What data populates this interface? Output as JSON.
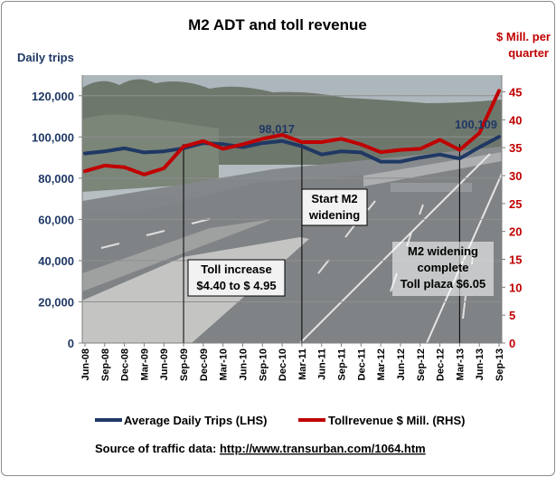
{
  "chart_data": {
    "type": "line",
    "title": "M2 ADT and toll revenue",
    "left_axis": {
      "label": "Daily trips",
      "ylim": [
        0,
        130000
      ],
      "ticks": [
        "0",
        "20,000",
        "40,000",
        "60,000",
        "80,000",
        "100,000",
        "120,000"
      ]
    },
    "right_axis": {
      "label_lines": [
        "$ Mill. per",
        "quarter"
      ],
      "ylim": [
        0,
        48
      ],
      "ticks": [
        "0",
        "5",
        "10",
        "15",
        "20",
        "25",
        "30",
        "35",
        "40",
        "45"
      ]
    },
    "x_labels": [
      "Jun-08",
      "Sep-08",
      "Dec-08",
      "Mar-09",
      "Jun-09",
      "Sep-09",
      "Dec-09",
      "Mar-10",
      "Jun-10",
      "Sep-10",
      "Dec-10",
      "Mar-11",
      "Jun-11",
      "Sep-11",
      "Dec-11",
      "Mar-12",
      "Jun-12",
      "Sep-12",
      "Dec-12",
      "Mar-13",
      "Jun-13",
      "Sep-13"
    ],
    "series": [
      {
        "name": "Average Daily Trips (LHS)",
        "axis": "left",
        "color": "#1f3864",
        "values": [
          92000,
          93000,
          94500,
          92500,
          93000,
          94500,
          97000,
          96500,
          95000,
          97000,
          98017,
          95500,
          91500,
          93000,
          92500,
          88000,
          88000,
          90000,
          91500,
          89500,
          95000,
          100109
        ]
      },
      {
        "name": "Tollrevenue $ Mill. (RHS)",
        "axis": "right",
        "color": "#c00000",
        "values": [
          30.8,
          31.8,
          31.5,
          30.2,
          31.3,
          35.2,
          36.2,
          34.8,
          35.6,
          36.6,
          37.3,
          36.0,
          36.0,
          36.6,
          35.6,
          34.2,
          34.6,
          34.8,
          36.4,
          34.6,
          37.6,
          45.2
        ]
      }
    ],
    "data_labels": [
      {
        "series": 0,
        "index": 10,
        "text": "98,017"
      },
      {
        "series": 0,
        "index": 21,
        "text": "100,109"
      }
    ],
    "annotations": [
      {
        "lines": [
          "Toll increase",
          "$4.40 to $ 4.95"
        ],
        "at_index": 5
      },
      {
        "lines": [
          "Start M2",
          "widening"
        ],
        "at_index": 11
      },
      {
        "lines": [
          "M2 widening",
          "complete",
          "Toll plaza $6.05"
        ],
        "at_index": 19
      }
    ],
    "legend_position": "bottom",
    "grid": true
  },
  "source": {
    "prefix": "Source of traffic data: ",
    "url_text": "http://www.transurban.com/1064.htm"
  },
  "colors": {
    "lhs": "#1f3864",
    "rhs": "#c00000",
    "background_photo": "highway"
  }
}
